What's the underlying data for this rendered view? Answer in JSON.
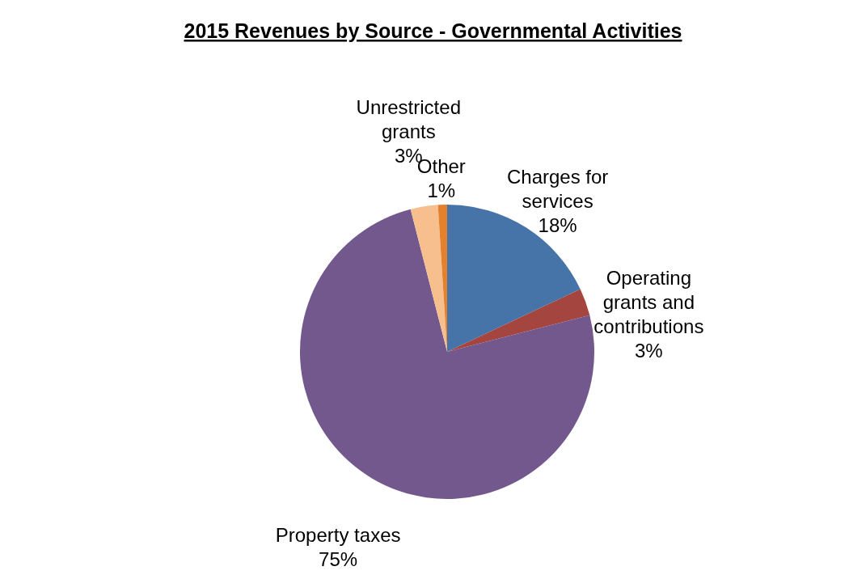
{
  "chart_data": {
    "type": "pie",
    "title": "2015 Revenues by Source - Governmental Activities",
    "categories": [
      "Charges for services",
      "Operating grants and contributions",
      "Property taxes",
      "Unrestricted grants",
      "Other"
    ],
    "values": [
      18,
      3,
      75,
      3,
      1
    ],
    "value_labels": [
      "18%",
      "3%",
      "75%",
      "3%",
      "1%"
    ],
    "colors": [
      "#4674a8",
      "#a5453f",
      "#72588c",
      "#f8bf8e",
      "#e4812e"
    ],
    "legend": false
  }
}
